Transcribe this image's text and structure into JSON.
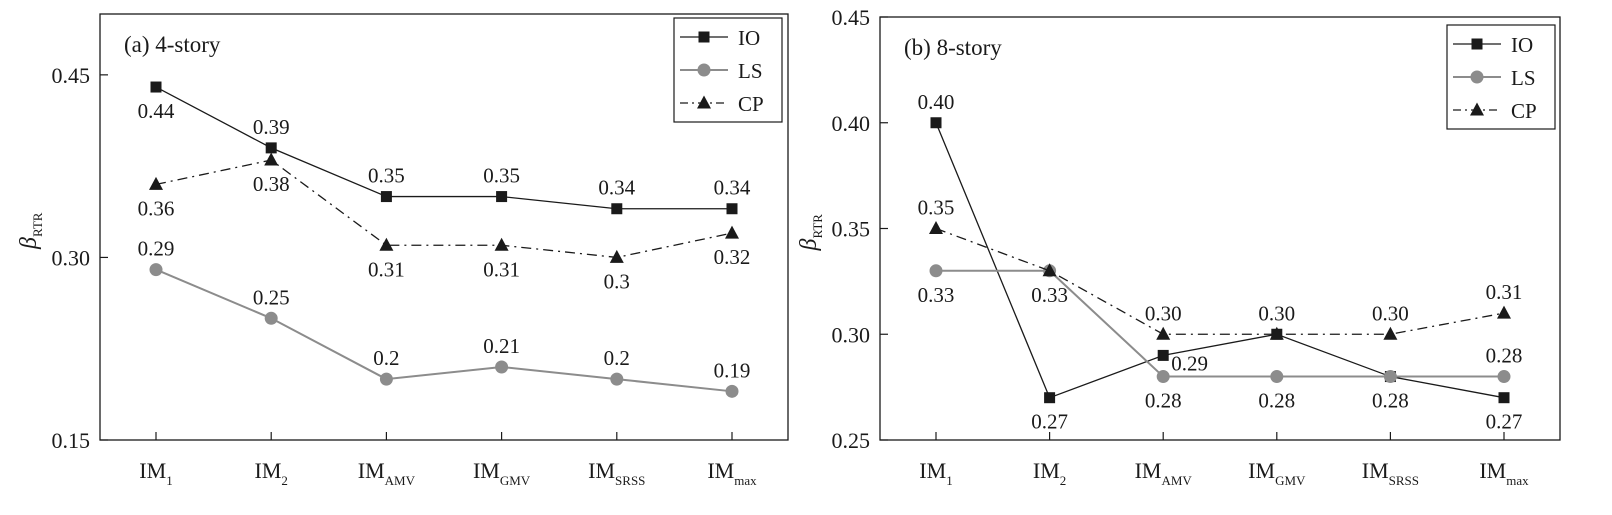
{
  "chart_data": [
    {
      "type": "line",
      "title": "(a) 4-story",
      "ylabel_symbol": "β",
      "ylabel_sub": "RTR",
      "categories": [
        {
          "main": "IM",
          "sub": "1"
        },
        {
          "main": "IM",
          "sub": "2"
        },
        {
          "main": "IM",
          "sub": "AMV"
        },
        {
          "main": "IM",
          "sub": "GMV"
        },
        {
          "main": "IM",
          "sub": "SRSS"
        },
        {
          "main": "IM",
          "sub": "max"
        }
      ],
      "ylim": [
        0.15,
        0.5
      ],
      "yticks": [
        0.15,
        0.3,
        0.45
      ],
      "ytick_labels": [
        "0.15",
        "0.30",
        "0.45"
      ],
      "legend_position": "top-right",
      "series": [
        {
          "name": "IO",
          "marker": "square",
          "dash": "solid",
          "color": "#1a1a1a",
          "values": [
            0.44,
            0.39,
            0.35,
            0.35,
            0.34,
            0.34
          ],
          "labels": [
            "0.44",
            "0.39",
            "0.35",
            "0.35",
            "0.34",
            "0.34"
          ],
          "label_pos": [
            "below",
            "above",
            "above",
            "above",
            "above",
            "above"
          ]
        },
        {
          "name": "LS",
          "marker": "circle",
          "dash": "solid",
          "color": "#8c8c8c",
          "values": [
            0.29,
            0.25,
            0.2,
            0.21,
            0.2,
            0.19
          ],
          "labels": [
            "0.29",
            "0.25",
            "0.2",
            "0.21",
            "0.2",
            "0.19"
          ],
          "label_pos": [
            "above",
            "above",
            "above",
            "above",
            "above",
            "above"
          ]
        },
        {
          "name": "CP",
          "marker": "triangle",
          "dash": "dashdot",
          "color": "#1a1a1a",
          "values": [
            0.36,
            0.38,
            0.31,
            0.31,
            0.3,
            0.32
          ],
          "labels": [
            "0.36",
            "0.38",
            "0.31",
            "0.31",
            "0.3",
            "0.32"
          ],
          "label_pos": [
            "below",
            "below",
            "below",
            "below",
            "below",
            "below"
          ]
        }
      ]
    },
    {
      "type": "line",
      "title": "(b) 8-story",
      "ylabel_symbol": "β",
      "ylabel_sub": "RTR",
      "categories": [
        {
          "main": "IM",
          "sub": "1"
        },
        {
          "main": "IM",
          "sub": "2"
        },
        {
          "main": "IM",
          "sub": "AMV"
        },
        {
          "main": "IM",
          "sub": "GMV"
        },
        {
          "main": "IM",
          "sub": "SRSS"
        },
        {
          "main": "IM",
          "sub": "max"
        }
      ],
      "ylim": [
        0.25,
        0.45
      ],
      "yticks": [
        0.25,
        0.3,
        0.35,
        0.4,
        0.45
      ],
      "ytick_labels": [
        "0.25",
        "0.30",
        "0.35",
        "0.40",
        "0.45"
      ],
      "legend_position": "top-right",
      "series": [
        {
          "name": "IO",
          "marker": "square",
          "dash": "solid",
          "color": "#1a1a1a",
          "values": [
            0.4,
            0.27,
            0.29,
            0.3,
            0.28,
            0.27
          ],
          "labels": [
            "0.40",
            "0.27",
            "0.29",
            "",
            "",
            "0.27"
          ],
          "label_pos": [
            "above",
            "below",
            "right",
            "above",
            "below",
            "below"
          ]
        },
        {
          "name": "LS",
          "marker": "circle",
          "dash": "solid",
          "color": "#8c8c8c",
          "values": [
            0.33,
            0.33,
            0.28,
            0.28,
            0.28,
            0.28
          ],
          "labels": [
            "0.33",
            "0.33",
            "0.28",
            "0.28",
            "0.28",
            "0.28"
          ],
          "label_pos": [
            "below",
            "below",
            "below",
            "below",
            "below",
            "above"
          ]
        },
        {
          "name": "CP",
          "marker": "triangle",
          "dash": "dashdot",
          "color": "#1a1a1a",
          "values": [
            0.35,
            0.33,
            0.3,
            0.3,
            0.3,
            0.31
          ],
          "labels": [
            "0.35",
            "",
            "0.30",
            "0.30",
            "0.30",
            "0.31"
          ],
          "label_pos": [
            "above",
            "above",
            "above",
            "above",
            "above",
            "above"
          ]
        }
      ]
    }
  ]
}
